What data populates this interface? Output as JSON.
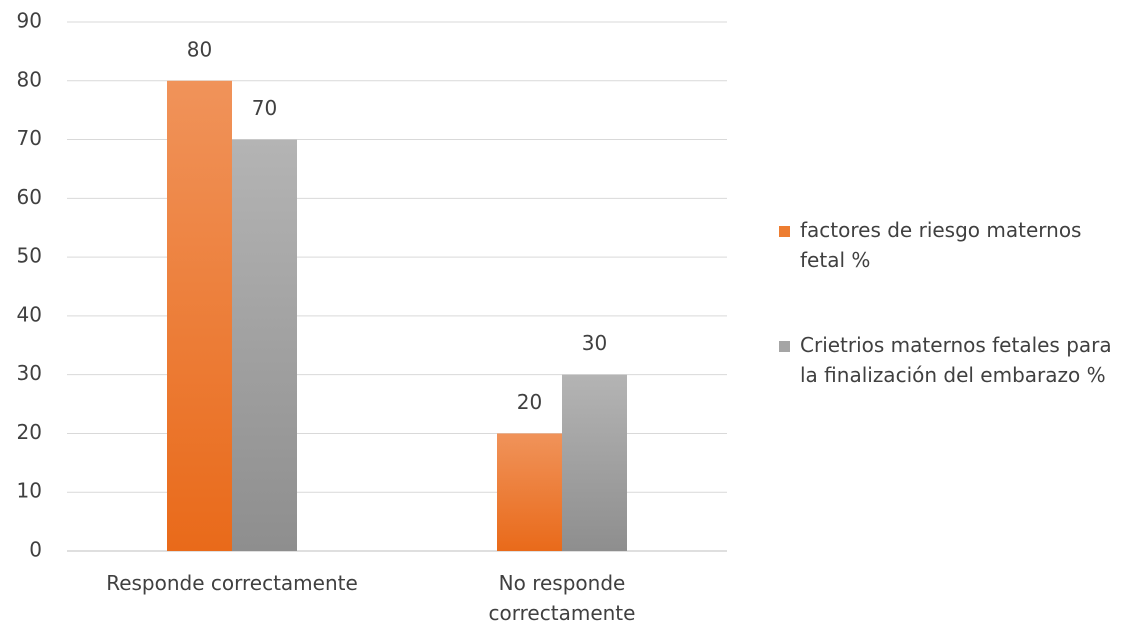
{
  "chart_data": {
    "type": "bar",
    "categories": [
      "Responde correctamente",
      "No responde correctamente"
    ],
    "series": [
      {
        "name": "factores de riesgo maternos fetal %",
        "color": "#ED7D31",
        "values": [
          80,
          20
        ]
      },
      {
        "name": "Crietrios maternos fetales para la finalización del embarazo %",
        "color": "#A5A5A5",
        "values": [
          70,
          30
        ]
      }
    ],
    "ylim": [
      0,
      90
    ],
    "yticks": [
      0,
      10,
      20,
      30,
      40,
      50,
      60,
      70,
      80,
      90
    ],
    "grid": true,
    "legend": "right"
  }
}
